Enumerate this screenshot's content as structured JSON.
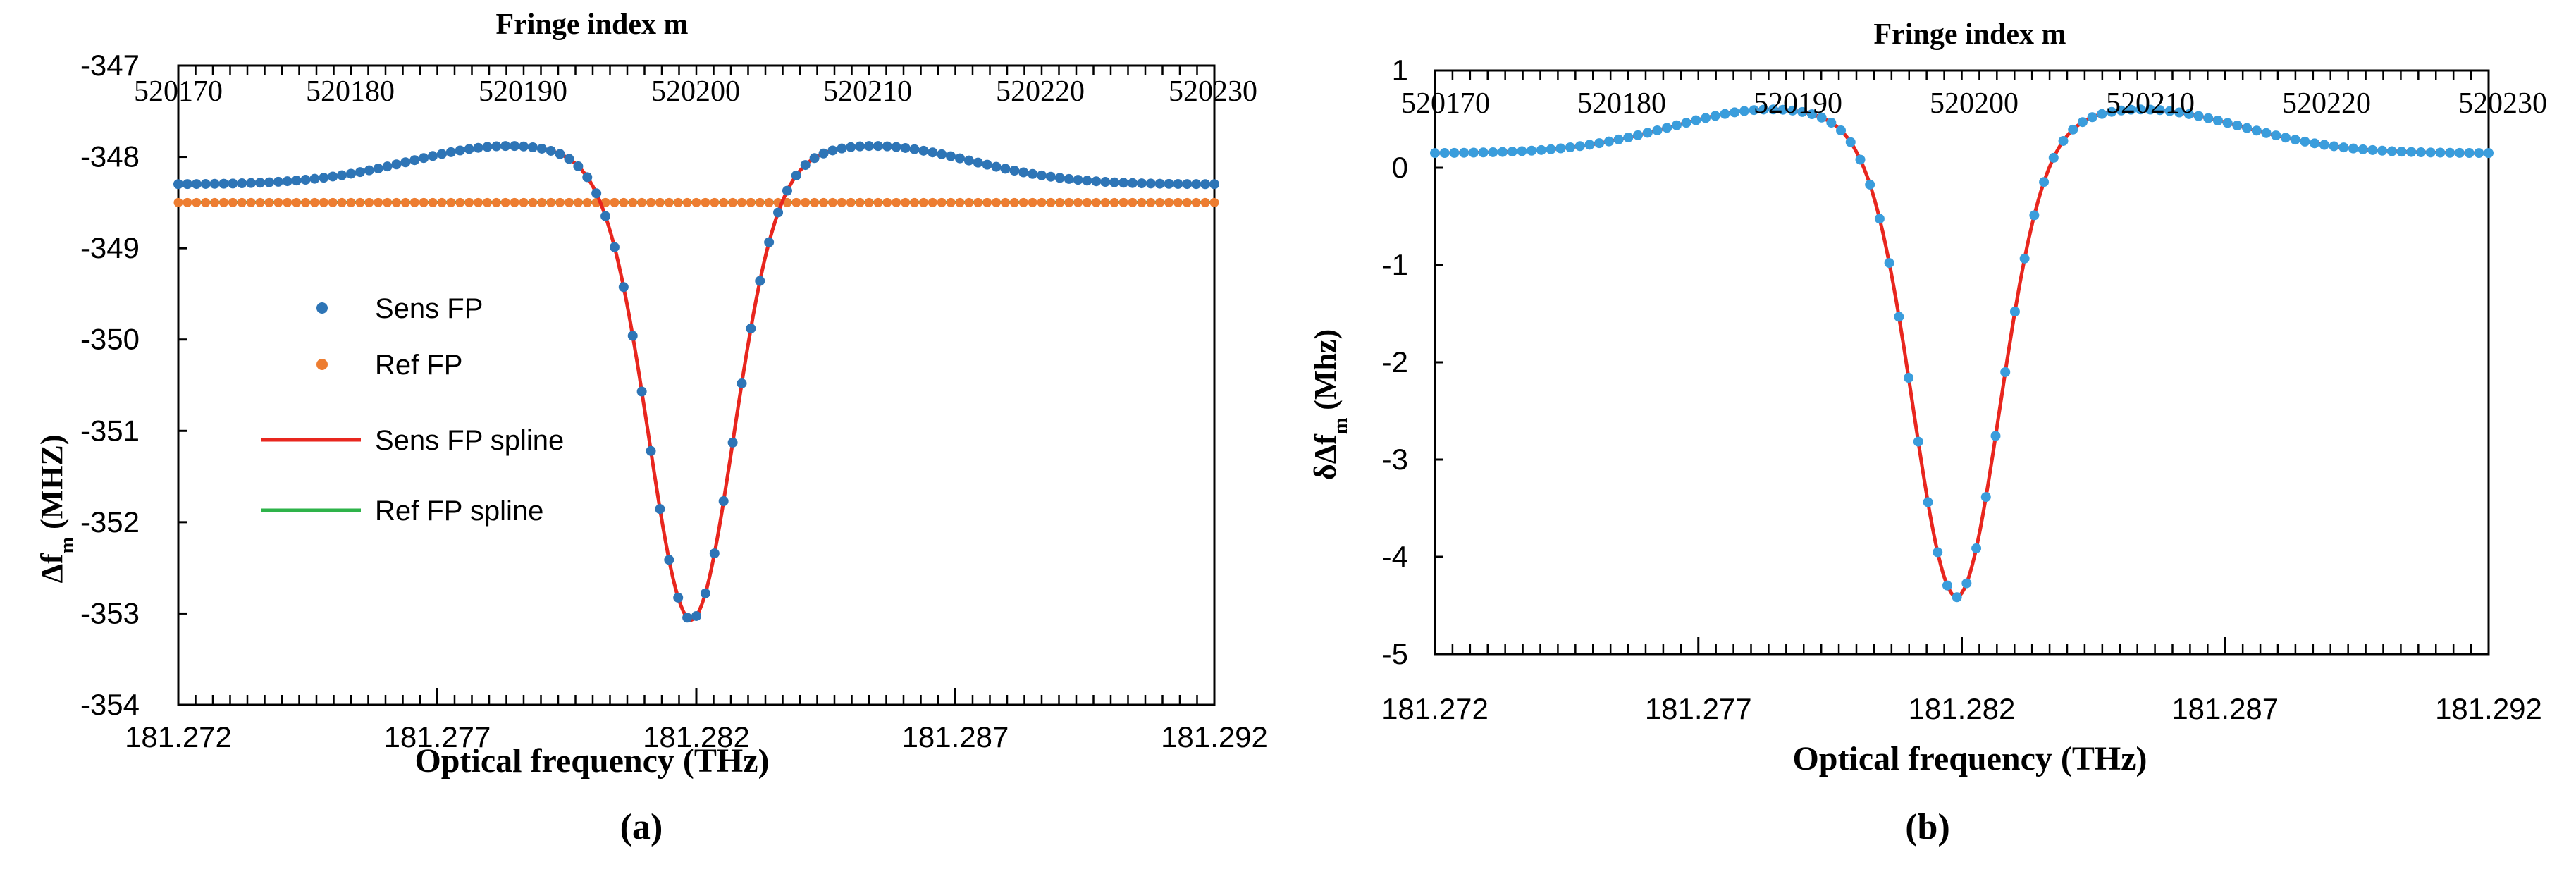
{
  "chart_data": [
    {
      "panel_label": "(a)",
      "type": "scatter",
      "xlabel": "Optical frequency (THz)",
      "x2label": "Fringe index m",
      "ylabel_main": "Δf",
      "ylabel_sub": "m",
      "ylabel_units": " (MHZ)",
      "xlim": [
        181.272,
        181.292
      ],
      "ylim": [
        -354,
        -347
      ],
      "x_ticks": [
        "181.272",
        "181.277",
        "181.282",
        "181.287",
        "181.292"
      ],
      "y_ticks": [
        "-347",
        "-348",
        "-349",
        "-350",
        "-351",
        "-352",
        "-353",
        "-354"
      ],
      "x2_ticks": [
        "520170",
        "520180",
        "520190",
        "520200",
        "520210",
        "520220",
        "520230"
      ],
      "legend": [
        "Sens FP",
        "Ref FP",
        "Sens FP spline",
        "Ref FP spline"
      ],
      "legend_position": "upper-left",
      "series": [
        {
          "name": "Sens FP",
          "kind": "points",
          "color": "#2E75B6",
          "baseline": -348.3,
          "side_bump": 0.42,
          "dip_depth": 4.85,
          "dip_center": 181.2819,
          "dip_width": 0.00115
        },
        {
          "name": "Ref FP",
          "kind": "points",
          "color": "#ED7D31",
          "constant": -348.5
        },
        {
          "name": "Sens FP spline",
          "kind": "line",
          "color": "#E8261E"
        },
        {
          "name": "Ref FP spline",
          "kind": "line",
          "color": "#2EB34A",
          "constant": -348.5
        }
      ]
    },
    {
      "panel_label": "(b)",
      "type": "scatter",
      "xlabel": "Optical frequency (THz)",
      "x2label": "Fringe index m",
      "ylabel_main": "δΔf",
      "ylabel_sub": "m",
      "ylabel_units": " (Mhz)",
      "xlim": [
        181.272,
        181.292
      ],
      "ylim": [
        -5,
        1
      ],
      "x_ticks": [
        "181.272",
        "181.277",
        "181.282",
        "181.287",
        "181.292"
      ],
      "y_ticks": [
        "1",
        "0",
        "-1",
        "-2",
        "-3",
        "-4",
        "-5"
      ],
      "x2_ticks": [
        "520170",
        "520180",
        "520190",
        "520200",
        "520210",
        "520220",
        "520230"
      ],
      "series": [
        {
          "name": "δΔf_m",
          "kind": "points",
          "color": "#3A9DDC",
          "baseline": 0.15,
          "side_bump": 0.45,
          "dip_depth": 4.65,
          "dip_center": 181.2819,
          "dip_width": 0.00115
        },
        {
          "name": "spline",
          "kind": "line",
          "color": "#E8261E"
        }
      ]
    }
  ]
}
